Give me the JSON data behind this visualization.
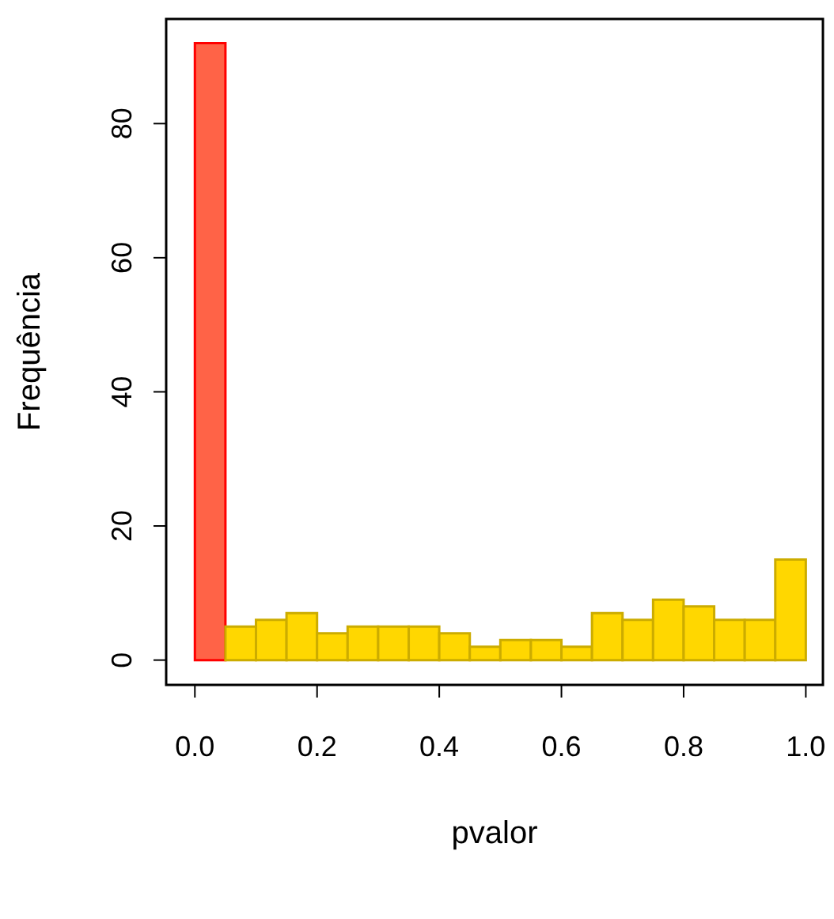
{
  "chart_data": {
    "type": "histogram",
    "xlabel": "pvalor",
    "ylabel": "Frequência",
    "bins": [
      0,
      0.05,
      0.1,
      0.15,
      0.2,
      0.25,
      0.3,
      0.35,
      0.4,
      0.45,
      0.5,
      0.55,
      0.6,
      0.65,
      0.7,
      0.75,
      0.8,
      0.85,
      0.9,
      0.95,
      1.0
    ],
    "values": [
      92,
      5,
      6,
      7,
      4,
      5,
      5,
      5,
      4,
      2,
      3,
      3,
      2,
      7,
      6,
      9,
      8,
      6,
      6,
      15
    ],
    "colors": [
      "#ff6347",
      "#ffd700",
      "#ffd700",
      "#ffd700",
      "#ffd700",
      "#ffd700",
      "#ffd700",
      "#ffd700",
      "#ffd700",
      "#ffd700",
      "#ffd700",
      "#ffd700",
      "#ffd700",
      "#ffd700",
      "#ffd700",
      "#ffd700",
      "#ffd700",
      "#ffd700",
      "#ffd700",
      "#ffd700"
    ],
    "xlim": [
      -0.047,
      1.028
    ],
    "ylim": [
      -3.7,
      95.6
    ],
    "xticks": [
      {
        "value": 0,
        "label": "0.0"
      },
      0.2,
      0.4,
      0.6,
      0.8,
      {
        "value": 1,
        "label": "1.0"
      }
    ],
    "yticks": [
      0,
      20,
      40,
      60,
      80
    ],
    "grid": false
  }
}
